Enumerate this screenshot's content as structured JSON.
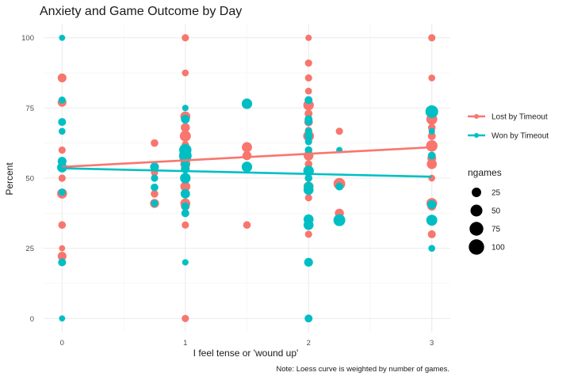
{
  "chart_data": {
    "type": "scatter",
    "title": "Anxiety and Game Outcome by Day",
    "xlabel": "I feel tense or 'wound up'",
    "ylabel": "Percent",
    "caption": "Note: Loess curve is weighted by number of games.",
    "xlim": [
      -0.15,
      3.15
    ],
    "ylim": [
      -5,
      105
    ],
    "x_ticks": [
      "0",
      "1",
      "2",
      "3"
    ],
    "y_ticks": [
      "0",
      "25",
      "50",
      "75",
      "100"
    ],
    "grid": true,
    "legend_position": "right",
    "size_legend": {
      "title": "ngames",
      "entries": [
        {
          "label": "25",
          "value": 25
        },
        {
          "label": "50",
          "value": 50
        },
        {
          "label": "75",
          "value": 75
        },
        {
          "label": "100",
          "value": 100
        }
      ]
    },
    "series": [
      {
        "name": "Lost by Timeout",
        "color": "#F8766D",
        "trend": [
          [
            0,
            54
          ],
          [
            3,
            61
          ]
        ],
        "points": [
          [
            0,
            85.7,
            20
          ],
          [
            0,
            77,
            20
          ],
          [
            0,
            60,
            10
          ],
          [
            0,
            50,
            10
          ],
          [
            0,
            44.5,
            30
          ],
          [
            0,
            33.3,
            12
          ],
          [
            0,
            25,
            5
          ],
          [
            0,
            22.2,
            20
          ],
          [
            1,
            100,
            10
          ],
          [
            1,
            87.5,
            8
          ],
          [
            1,
            72,
            30
          ],
          [
            1,
            68,
            22
          ],
          [
            1,
            65,
            40
          ],
          [
            1,
            62,
            10
          ],
          [
            1,
            57,
            42
          ],
          [
            1,
            55,
            30
          ],
          [
            1,
            50,
            25
          ],
          [
            1,
            47,
            30
          ],
          [
            1,
            41,
            30
          ],
          [
            1,
            40,
            20
          ],
          [
            1,
            33.3,
            10
          ],
          [
            1,
            0,
            10
          ],
          [
            0.75,
            62.5,
            12
          ],
          [
            0.75,
            52,
            10
          ],
          [
            0.75,
            44.4,
            12
          ],
          [
            0.75,
            41,
            22
          ],
          [
            1.5,
            61,
            32
          ],
          [
            1.5,
            58,
            22
          ],
          [
            1.5,
            33.3,
            12
          ],
          [
            2,
            100,
            6
          ],
          [
            2,
            91,
            10
          ],
          [
            2,
            85.7,
            10
          ],
          [
            2,
            81,
            8
          ],
          [
            2,
            76,
            35
          ],
          [
            2,
            73,
            14
          ],
          [
            2,
            70,
            18
          ],
          [
            2,
            67,
            10
          ],
          [
            2,
            65,
            38
          ],
          [
            2,
            58,
            28
          ],
          [
            2,
            55,
            12
          ],
          [
            2,
            50,
            10
          ],
          [
            2,
            47,
            30
          ],
          [
            2,
            43,
            10
          ],
          [
            2,
            33.3,
            8
          ],
          [
            2,
            30,
            10
          ],
          [
            2.25,
            66.7,
            10
          ],
          [
            2.25,
            48,
            48
          ],
          [
            2.25,
            37.5,
            22
          ],
          [
            3,
            100,
            10
          ],
          [
            3,
            85.7,
            8
          ],
          [
            3,
            71,
            40
          ],
          [
            3,
            68,
            12
          ],
          [
            3,
            65,
            14
          ],
          [
            3,
            61.5,
            45
          ],
          [
            3,
            57,
            20
          ],
          [
            3,
            55,
            30
          ],
          [
            3,
            50,
            8
          ],
          [
            3,
            41,
            38
          ],
          [
            3,
            40,
            20
          ],
          [
            3,
            30,
            14
          ]
        ]
      },
      {
        "name": "Won by Timeout",
        "color": "#00BFC4",
        "trend": [
          [
            0,
            53.5
          ],
          [
            3,
            50.5
          ]
        ],
        "points": [
          [
            0,
            100,
            5
          ],
          [
            0,
            77.8,
            10
          ],
          [
            0,
            70,
            14
          ],
          [
            0,
            66.7,
            8
          ],
          [
            0,
            56,
            20
          ],
          [
            0,
            53.8,
            30
          ],
          [
            0,
            45,
            10
          ],
          [
            0,
            20,
            14
          ],
          [
            0,
            0,
            5
          ],
          [
            1,
            75,
            6
          ],
          [
            1,
            71,
            20
          ],
          [
            1,
            60,
            55
          ],
          [
            1,
            58,
            60
          ],
          [
            1,
            55,
            20
          ],
          [
            1,
            53.3,
            20
          ],
          [
            1,
            50,
            35
          ],
          [
            1,
            44.4,
            25
          ],
          [
            1,
            40,
            14
          ],
          [
            1,
            37.5,
            14
          ],
          [
            1,
            20,
            6
          ],
          [
            0.75,
            54,
            20
          ],
          [
            0.75,
            50,
            10
          ],
          [
            0.75,
            46.7,
            12
          ],
          [
            0.75,
            41,
            10
          ],
          [
            1.5,
            76.5,
            35
          ],
          [
            1.5,
            54,
            35
          ],
          [
            2,
            77.8,
            14
          ],
          [
            2,
            71,
            14
          ],
          [
            2,
            70,
            10
          ],
          [
            2,
            66.7,
            10
          ],
          [
            2,
            65,
            14
          ],
          [
            2,
            63,
            10
          ],
          [
            2,
            60,
            12
          ],
          [
            2,
            52.6,
            35
          ],
          [
            2,
            50,
            12
          ],
          [
            2,
            47,
            24
          ],
          [
            2,
            45.8,
            30
          ],
          [
            2,
            35.3,
            30
          ],
          [
            2,
            33.3,
            30
          ],
          [
            2,
            20,
            20
          ],
          [
            2,
            0,
            14
          ],
          [
            2.25,
            60,
            6
          ],
          [
            2.25,
            47,
            14
          ],
          [
            2.25,
            35,
            50
          ],
          [
            3,
            73.7,
            60
          ],
          [
            3,
            66.7,
            6
          ],
          [
            3,
            58,
            14
          ],
          [
            3,
            40.6,
            22
          ],
          [
            3,
            35,
            40
          ],
          [
            3,
            25,
            8
          ]
        ]
      }
    ]
  }
}
